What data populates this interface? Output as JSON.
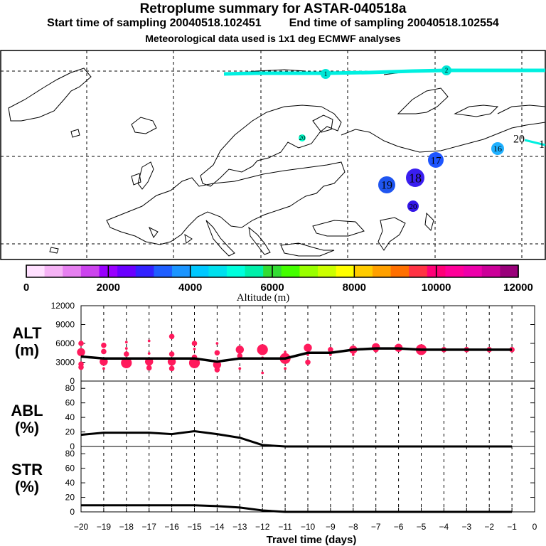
{
  "header": {
    "title": "Retroplume summary for ASTAR-040518a",
    "start_label": "Start time of sampling 20040518.102451",
    "end_label": "End time of sampling 20040518.102554",
    "met_note": "Meteorological data used is 1x1 deg ECMWF analyses"
  },
  "colorbar": {
    "colors": [
      "#ffe0ff",
      "#f5b3f5",
      "#e680f0",
      "#cc44ee",
      "#9900ff",
      "#6a00ff",
      "#3322ff",
      "#1f5fff",
      "#1b95ff",
      "#00c8ff",
      "#00e0ee",
      "#00ffdd",
      "#00f0aa",
      "#33dd33",
      "#44ff00",
      "#99ff00",
      "#ccff00",
      "#ffff00",
      "#ffcc00",
      "#ffa000",
      "#ff7000",
      "#ff3344",
      "#ff0077",
      "#ff0099",
      "#ee00aa",
      "#cc0099",
      "#99007a"
    ],
    "ticks": [
      0,
      2000,
      4000,
      6000,
      8000,
      10000,
      12000
    ],
    "tick_labels": [
      "0",
      "2000",
      "4000",
      "6000",
      "8000",
      "10000",
      "12000"
    ],
    "label": "Altitude (m)"
  },
  "map": {
    "plume_color": "#00f0e0",
    "day_labels": [
      {
        "text": "1",
        "color": "#00e6d6",
        "day": 1
      },
      {
        "text": "2",
        "color": "#00e6d6",
        "day": 2
      },
      {
        "text": "20",
        "color": "#00ffcc",
        "day": 20
      },
      {
        "text": "20",
        "color": "#00ffcc",
        "day": 20
      },
      {
        "text": "16",
        "color": "#1fb0ff",
        "day": 16
      },
      {
        "text": "17",
        "color": "#1e55ff",
        "day": 17
      },
      {
        "text": "18",
        "color": "#3a1ef0",
        "day": 18
      },
      {
        "text": "19",
        "color": "#1f55f0",
        "day": 19
      },
      {
        "text": "20",
        "color": "#3316e8",
        "day": 20
      }
    ],
    "edge_label": "1"
  },
  "chart_data": [
    {
      "type": "scatter",
      "panel": "ALT",
      "ylabel": "ALT (m)",
      "ylim": [
        0,
        12000
      ],
      "yticks": [
        0,
        3000,
        6000,
        9000,
        12000
      ],
      "xlim": [
        -20,
        0
      ],
      "mean_line": {
        "x": [
          -20,
          -19,
          -18,
          -17,
          -16,
          -15,
          -14,
          -13,
          -12,
          -11,
          -10,
          -9,
          -8,
          -7,
          -6,
          -5,
          -4,
          -3,
          -2,
          -1
        ],
        "y": [
          3900,
          3600,
          3600,
          3600,
          3600,
          3600,
          3100,
          3600,
          3600,
          3600,
          4500,
          4500,
          5000,
          5200,
          5200,
          5000,
          5000,
          5000,
          5000,
          5000
        ]
      },
      "points": [
        {
          "x": -20,
          "y": 6000,
          "s": 2
        },
        {
          "x": -20,
          "y": 4600,
          "s": 3
        },
        {
          "x": -20,
          "y": 2700,
          "s": 2
        },
        {
          "x": -20,
          "y": 2200,
          "s": 2
        },
        {
          "x": -19,
          "y": 5700,
          "s": 2
        },
        {
          "x": -19,
          "y": 4700,
          "s": 2
        },
        {
          "x": -19,
          "y": 3100,
          "s": 3
        },
        {
          "x": -19,
          "y": 2000,
          "s": 1
        },
        {
          "x": -18,
          "y": 6200,
          "s": 1
        },
        {
          "x": -18,
          "y": 5200,
          "s": 1
        },
        {
          "x": -18,
          "y": 4300,
          "s": 2
        },
        {
          "x": -18,
          "y": 2900,
          "s": 4
        },
        {
          "x": -17,
          "y": 6400,
          "s": 1
        },
        {
          "x": -17,
          "y": 4400,
          "s": 1
        },
        {
          "x": -17,
          "y": 3100,
          "s": 3
        },
        {
          "x": -17,
          "y": 2100,
          "s": 2
        },
        {
          "x": -16,
          "y": 7100,
          "s": 2
        },
        {
          "x": -16,
          "y": 4300,
          "s": 2
        },
        {
          "x": -16,
          "y": 3100,
          "s": 3
        },
        {
          "x": -16,
          "y": 2000,
          "s": 2
        },
        {
          "x": -15,
          "y": 6000,
          "s": 2
        },
        {
          "x": -15,
          "y": 5100,
          "s": 1
        },
        {
          "x": -15,
          "y": 3800,
          "s": 2
        },
        {
          "x": -15,
          "y": 2900,
          "s": 4
        },
        {
          "x": -14,
          "y": 6000,
          "s": 1
        },
        {
          "x": -14,
          "y": 4500,
          "s": 2
        },
        {
          "x": -14,
          "y": 2600,
          "s": 3
        },
        {
          "x": -14,
          "y": 1800,
          "s": 2
        },
        {
          "x": -13,
          "y": 5000,
          "s": 3
        },
        {
          "x": -13,
          "y": 4000,
          "s": 2
        },
        {
          "x": -13,
          "y": 2000,
          "s": 1
        },
        {
          "x": -12,
          "y": 5000,
          "s": 4
        },
        {
          "x": -12,
          "y": 3700,
          "s": 1
        },
        {
          "x": -12,
          "y": 1300,
          "s": 1
        },
        {
          "x": -11,
          "y": 4600,
          "s": 1
        },
        {
          "x": -11,
          "y": 3600,
          "s": 4
        },
        {
          "x": -11,
          "y": 2000,
          "s": 1
        },
        {
          "x": -10,
          "y": 5300,
          "s": 3
        },
        {
          "x": -10,
          "y": 4200,
          "s": 1
        },
        {
          "x": -10,
          "y": 3000,
          "s": 2
        },
        {
          "x": -9,
          "y": 5000,
          "s": 2
        },
        {
          "x": -9,
          "y": 4200,
          "s": 1
        },
        {
          "x": -8,
          "y": 5000,
          "s": 3
        },
        {
          "x": -8,
          "y": 4200,
          "s": 1
        },
        {
          "x": -7,
          "y": 5400,
          "s": 3
        },
        {
          "x": -7,
          "y": 5000,
          "s": 2
        },
        {
          "x": -6,
          "y": 5300,
          "s": 3
        },
        {
          "x": -5,
          "y": 5000,
          "s": 4
        },
        {
          "x": -4,
          "y": 5000,
          "s": 2
        },
        {
          "x": -3,
          "y": 5000,
          "s": 2
        },
        {
          "x": -2,
          "y": 5000,
          "s": 2
        },
        {
          "x": -1,
          "y": 5000,
          "s": 2
        }
      ],
      "point_color": "#ff1a5c"
    },
    {
      "type": "line",
      "panel": "ABL",
      "ylabel": "ABL (%)",
      "ylim": [
        0,
        90
      ],
      "yticks": [
        0,
        20,
        40,
        60,
        80
      ],
      "xlim": [
        -20,
        0
      ],
      "series": [
        {
          "name": "ABL",
          "x": [
            -20,
            -19,
            -18,
            -17,
            -16,
            -15,
            -14,
            -13,
            -12,
            -11,
            -10,
            -9,
            -8,
            -7,
            -6,
            -5,
            -4,
            -3,
            -2,
            -1
          ],
          "values": [
            16,
            19,
            19,
            19,
            17,
            21,
            17,
            12,
            2,
            0,
            0,
            0,
            0,
            0,
            0,
            0,
            0,
            0,
            0,
            0
          ]
        }
      ]
    },
    {
      "type": "line",
      "panel": "STR",
      "ylabel": "STR (%)",
      "ylim": [
        0,
        90
      ],
      "yticks": [
        0,
        20,
        40,
        60,
        80
      ],
      "xlim": [
        -20,
        0
      ],
      "series": [
        {
          "name": "STR",
          "x": [
            -20,
            -19,
            -18,
            -17,
            -16,
            -15,
            -14,
            -13,
            -12,
            -11,
            -10,
            -9,
            -8,
            -7,
            -6,
            -5,
            -4,
            -3,
            -2,
            -1
          ],
          "values": [
            9,
            9,
            9,
            9,
            9,
            9,
            8,
            6,
            2,
            0,
            0,
            0,
            0,
            0,
            0,
            0,
            0,
            0,
            0,
            0
          ]
        }
      ]
    }
  ],
  "panels": {
    "alt_label_1": "ALT",
    "alt_label_2": "(m)",
    "abl_label_1": "ABL",
    "abl_label_2": "(%)",
    "str_label_1": "STR",
    "str_label_2": "(%)"
  },
  "x_axis": {
    "ticks": [
      -20,
      -19,
      -18,
      -17,
      -16,
      -15,
      -14,
      -13,
      -12,
      -11,
      -10,
      -9,
      -8,
      -7,
      -6,
      -5,
      -4,
      -3,
      -2,
      -1,
      0
    ],
    "tick_labels": [
      "−20",
      "−19",
      "−18",
      "−17",
      "−16",
      "−15",
      "−14",
      "−13",
      "−12",
      "−11",
      "−10",
      "−9",
      "−8",
      "−7",
      "−6",
      "−5",
      "−4",
      "−3",
      "−2",
      "−1",
      "0"
    ],
    "label": "Travel time (days)"
  }
}
